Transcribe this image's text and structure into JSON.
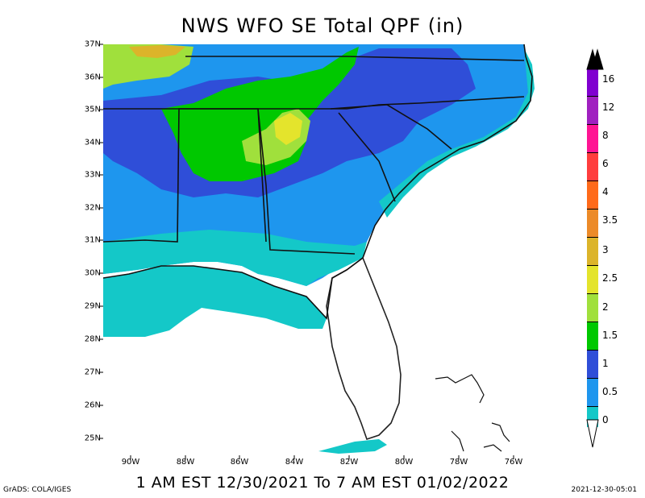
{
  "map": {
    "title": "NWS WFO SE Total QPF (in)",
    "valid_period": "1 AM EST 12/30/2021 To 7 AM EST 01/02/2022",
    "credit": "GrADS: COLA/IGES",
    "issued": "2021-12-30-05:01",
    "lat_labels": [
      "37N",
      "36N",
      "35N",
      "34N",
      "33N",
      "32N",
      "31N",
      "30N",
      "29N",
      "28N",
      "27N",
      "26N",
      "25N"
    ],
    "lon_labels": [
      "90W",
      "88W",
      "86W",
      "84W",
      "82W",
      "80W",
      "78W",
      "76W"
    ]
  },
  "colorbar": {
    "labels": [
      "16",
      "12",
      "8",
      "6",
      "4",
      "3.5",
      "3",
      "2.5",
      "2",
      "1.5",
      "1",
      "0.5",
      "0"
    ],
    "colors": [
      "#8000d0",
      "#a020c0",
      "#ff1493",
      "#ff3d3d",
      "#ff6a1a",
      "#ec8a28",
      "#dcb42a",
      "#e4e42c",
      "#a0e03c",
      "#00c800",
      "#2f4ed8",
      "#1e96ee",
      "#14c8c8"
    ],
    "top_color": "#000000",
    "bottom_color": "#ffffff"
  }
}
